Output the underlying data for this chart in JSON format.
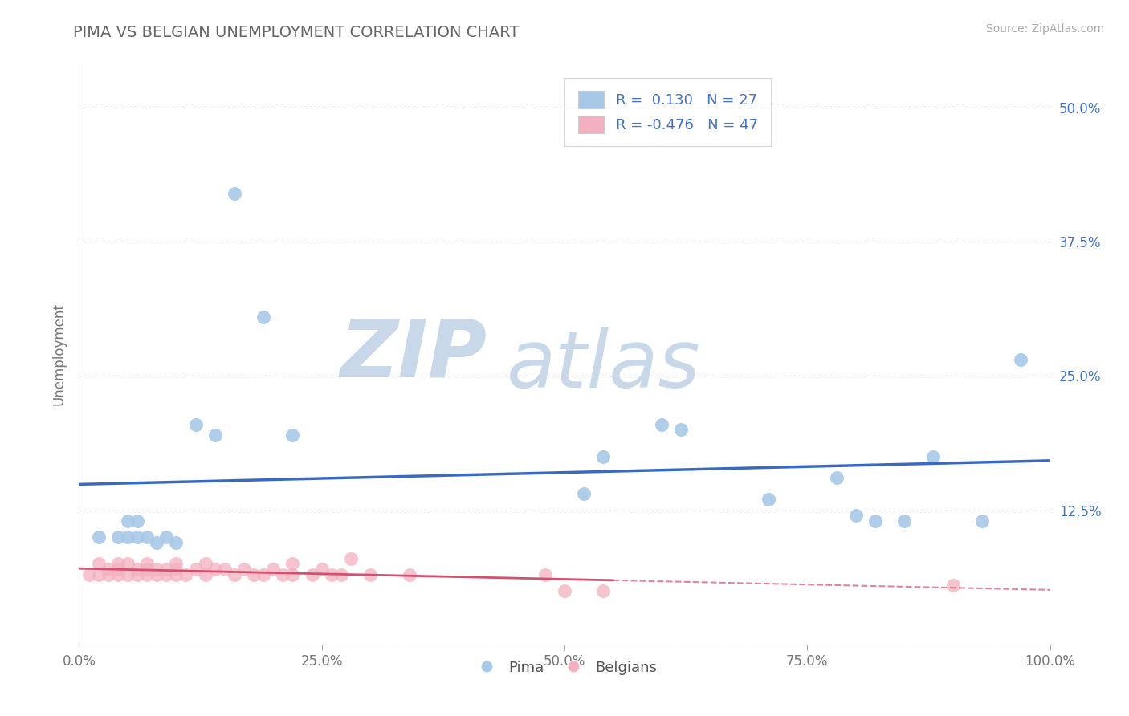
{
  "title": "PIMA VS BELGIAN UNEMPLOYMENT CORRELATION CHART",
  "source": "Source: ZipAtlas.com",
  "ylabel": "Unemployment",
  "xlim": [
    0.0,
    1.0
  ],
  "ylim": [
    0.0,
    0.54
  ],
  "x_ticks": [
    0.0,
    0.25,
    0.5,
    0.75,
    1.0
  ],
  "x_tick_labels": [
    "0.0%",
    "25.0%",
    "50.0%",
    "75.0%",
    "100.0%"
  ],
  "y_ticks": [
    0.0,
    0.125,
    0.25,
    0.375,
    0.5
  ],
  "y_tick_labels": [
    "",
    "12.5%",
    "25.0%",
    "37.5%",
    "50.0%"
  ],
  "pima_R": "0.130",
  "pima_N": "27",
  "belgians_R": "-0.476",
  "belgians_N": "47",
  "pima_color": "#a8c8e8",
  "belgians_color": "#f4b0c0",
  "pima_line_color": "#3a6abf",
  "belgians_line_color": "#d45070",
  "watermark_ZIP": "ZIP",
  "watermark_atlas": "atlas",
  "background_color": "#ffffff",
  "grid_color": "#cccccc",
  "pima_scatter_x": [
    0.02,
    0.04,
    0.05,
    0.05,
    0.06,
    0.06,
    0.07,
    0.08,
    0.09,
    0.1,
    0.12,
    0.14,
    0.16,
    0.19,
    0.22,
    0.52,
    0.54,
    0.6,
    0.62,
    0.71,
    0.78,
    0.8,
    0.82,
    0.85,
    0.88,
    0.93,
    0.97
  ],
  "pima_scatter_y": [
    0.1,
    0.1,
    0.115,
    0.1,
    0.115,
    0.1,
    0.1,
    0.095,
    0.1,
    0.095,
    0.205,
    0.195,
    0.42,
    0.305,
    0.195,
    0.14,
    0.175,
    0.205,
    0.2,
    0.135,
    0.155,
    0.12,
    0.115,
    0.115,
    0.175,
    0.115,
    0.265
  ],
  "belgians_scatter_x": [
    0.01,
    0.02,
    0.02,
    0.03,
    0.03,
    0.04,
    0.04,
    0.04,
    0.05,
    0.05,
    0.06,
    0.06,
    0.07,
    0.07,
    0.07,
    0.08,
    0.08,
    0.09,
    0.09,
    0.1,
    0.1,
    0.1,
    0.11,
    0.12,
    0.13,
    0.13,
    0.14,
    0.15,
    0.16,
    0.17,
    0.18,
    0.19,
    0.2,
    0.21,
    0.22,
    0.22,
    0.24,
    0.25,
    0.26,
    0.27,
    0.28,
    0.3,
    0.34,
    0.48,
    0.5,
    0.54,
    0.9
  ],
  "belgians_scatter_y": [
    0.065,
    0.075,
    0.065,
    0.07,
    0.065,
    0.07,
    0.065,
    0.075,
    0.065,
    0.075,
    0.065,
    0.07,
    0.065,
    0.07,
    0.075,
    0.065,
    0.07,
    0.065,
    0.07,
    0.065,
    0.07,
    0.075,
    0.065,
    0.07,
    0.065,
    0.075,
    0.07,
    0.07,
    0.065,
    0.07,
    0.065,
    0.065,
    0.07,
    0.065,
    0.065,
    0.075,
    0.065,
    0.07,
    0.065,
    0.065,
    0.08,
    0.065,
    0.065,
    0.065,
    0.05,
    0.05,
    0.055
  ]
}
